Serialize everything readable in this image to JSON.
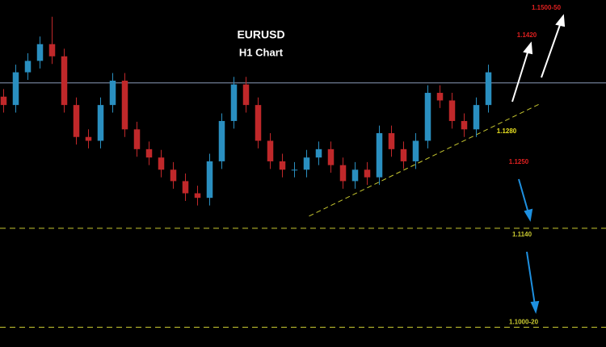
{
  "chart_data": {
    "type": "candlestick",
    "title": "EURUSD",
    "subtitle": "H1 Chart",
    "xlim": [
      -0.3,
      49.7
    ],
    "ylim": [
      1.0984,
      1.144
    ],
    "up_color": "#2a8fc0",
    "down_color": "#c0282a",
    "open": [
      1.1313,
      1.1302,
      1.1345,
      1.136,
      1.1382,
      1.1366,
      1.1302,
      1.126,
      1.1255,
      1.1302,
      1.1334,
      1.127,
      1.1244,
      1.1233,
      1.1217,
      1.1202,
      1.1186,
      1.118,
      1.1228,
      1.1281,
      1.1329,
      1.1302,
      1.1255,
      1.1228,
      1.1217,
      1.1217,
      1.1233,
      1.1244,
      1.1223,
      1.1202,
      1.1217,
      1.1207,
      1.1265,
      1.1244,
      1.1228,
      1.1255,
      1.1318,
      1.1308,
      1.1281,
      1.127,
      1.1302
    ],
    "high": [
      1.1323,
      1.1355,
      1.137,
      1.1392,
      1.1418,
      1.1376,
      1.1312,
      1.127,
      1.1312,
      1.1344,
      1.1344,
      1.128,
      1.1254,
      1.1243,
      1.1227,
      1.1212,
      1.1196,
      1.1238,
      1.1291,
      1.1339,
      1.1339,
      1.1312,
      1.1265,
      1.1238,
      1.1227,
      1.1243,
      1.1254,
      1.1254,
      1.1233,
      1.1227,
      1.1227,
      1.1275,
      1.1275,
      1.1254,
      1.1265,
      1.1328,
      1.1328,
      1.1318,
      1.1291,
      1.1312,
      1.1355
    ],
    "low": [
      1.1292,
      1.1292,
      1.1335,
      1.135,
      1.1356,
      1.1292,
      1.125,
      1.1245,
      1.1245,
      1.1292,
      1.126,
      1.1234,
      1.1223,
      1.1207,
      1.1192,
      1.1176,
      1.117,
      1.117,
      1.1218,
      1.1271,
      1.1292,
      1.1245,
      1.1218,
      1.1207,
      1.1207,
      1.1207,
      1.1223,
      1.1213,
      1.1192,
      1.1192,
      1.1197,
      1.1197,
      1.1234,
      1.1218,
      1.1218,
      1.1245,
      1.1298,
      1.1271,
      1.126,
      1.126,
      1.1292
    ],
    "close": [
      1.1302,
      1.1345,
      1.136,
      1.1382,
      1.1366,
      1.1302,
      1.126,
      1.1255,
      1.1302,
      1.1334,
      1.127,
      1.1244,
      1.1233,
      1.1217,
      1.1202,
      1.1186,
      1.118,
      1.1228,
      1.1281,
      1.1329,
      1.1302,
      1.1255,
      1.1228,
      1.1217,
      1.1217,
      1.1233,
      1.1244,
      1.1223,
      1.1202,
      1.1217,
      1.1207,
      1.1265,
      1.1244,
      1.1228,
      1.1255,
      1.1318,
      1.1308,
      1.1281,
      1.127,
      1.1302,
      1.1345
    ],
    "reference_line": {
      "value": 1.1331,
      "color": "#8a9ab8"
    },
    "levels": [
      {
        "value": 1.114,
        "label": "1.1140",
        "color": "#c8c830"
      },
      {
        "value": 1.101,
        "label": "1.1000-20",
        "color": "#c8c830"
      }
    ],
    "trendline": {
      "x": [
        25.2,
        44.3
      ],
      "y": [
        1.1156,
        1.1304
      ],
      "color": "#c8c830"
    },
    "annotations": [
      {
        "text": "1.1500-50",
        "color": "#e02020"
      },
      {
        "text": "1.1420",
        "color": "#e02020"
      },
      {
        "text": "1.1280",
        "color": "#e8e020"
      },
      {
        "text": "1.1250",
        "color": "#e02020"
      }
    ]
  }
}
